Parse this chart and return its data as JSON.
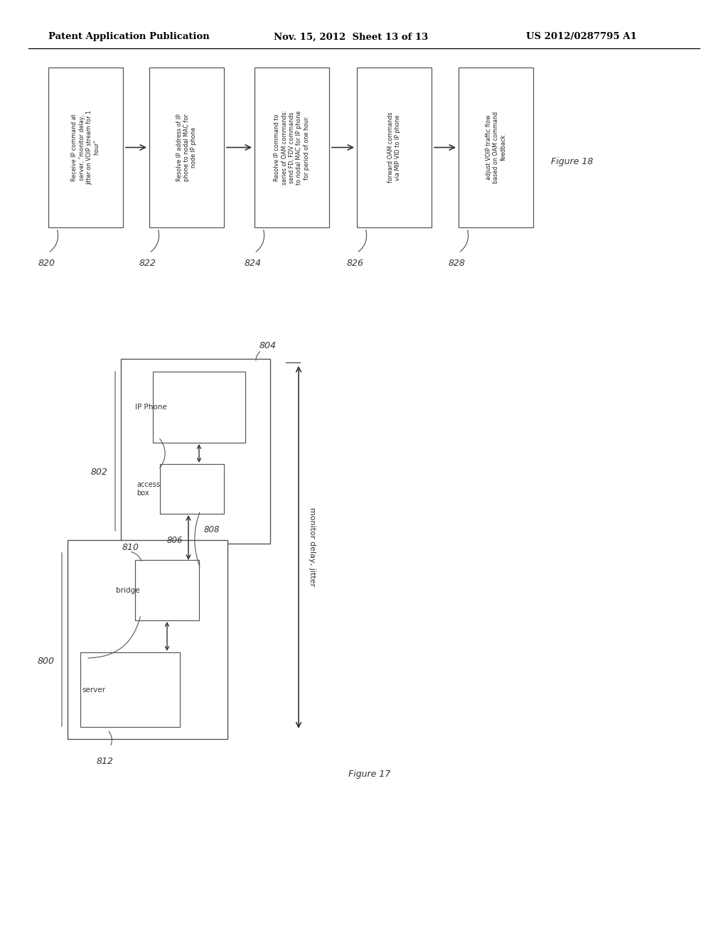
{
  "header_left": "Patent Application Publication",
  "header_mid": "Nov. 15, 2012  Sheet 13 of 13",
  "header_right": "US 2012/0287795 A1",
  "fig18_label": "Figure 18",
  "fig17_label": "Figure 17",
  "flow_boxes": [
    {
      "id": "820",
      "label": "Receive IP command at\nserver, \"monitor delay,\njitter on VOIP stream for 1\nhour\""
    },
    {
      "id": "822",
      "label": "Resolve IP address of IP\nphone to nodal MAC for\nnode IP phone"
    },
    {
      "id": "824",
      "label": "Resolve IP command to\nseries of OAM commands:\nsend FD, FDV commands\nto nodal MAC for IP phone\nfor period of one hour."
    },
    {
      "id": "826",
      "label": "forward OAM commands\nvia MIP VID to IP phone"
    },
    {
      "id": "828",
      "label": "adjust VOIP traffic flow\nbased on OAM command\nfeedback"
    }
  ],
  "bg_color": "#ffffff",
  "box_edge_color": "#555555",
  "box_fill_color": "#ffffff",
  "text_color": "#333333",
  "arrow_color": "#333333"
}
